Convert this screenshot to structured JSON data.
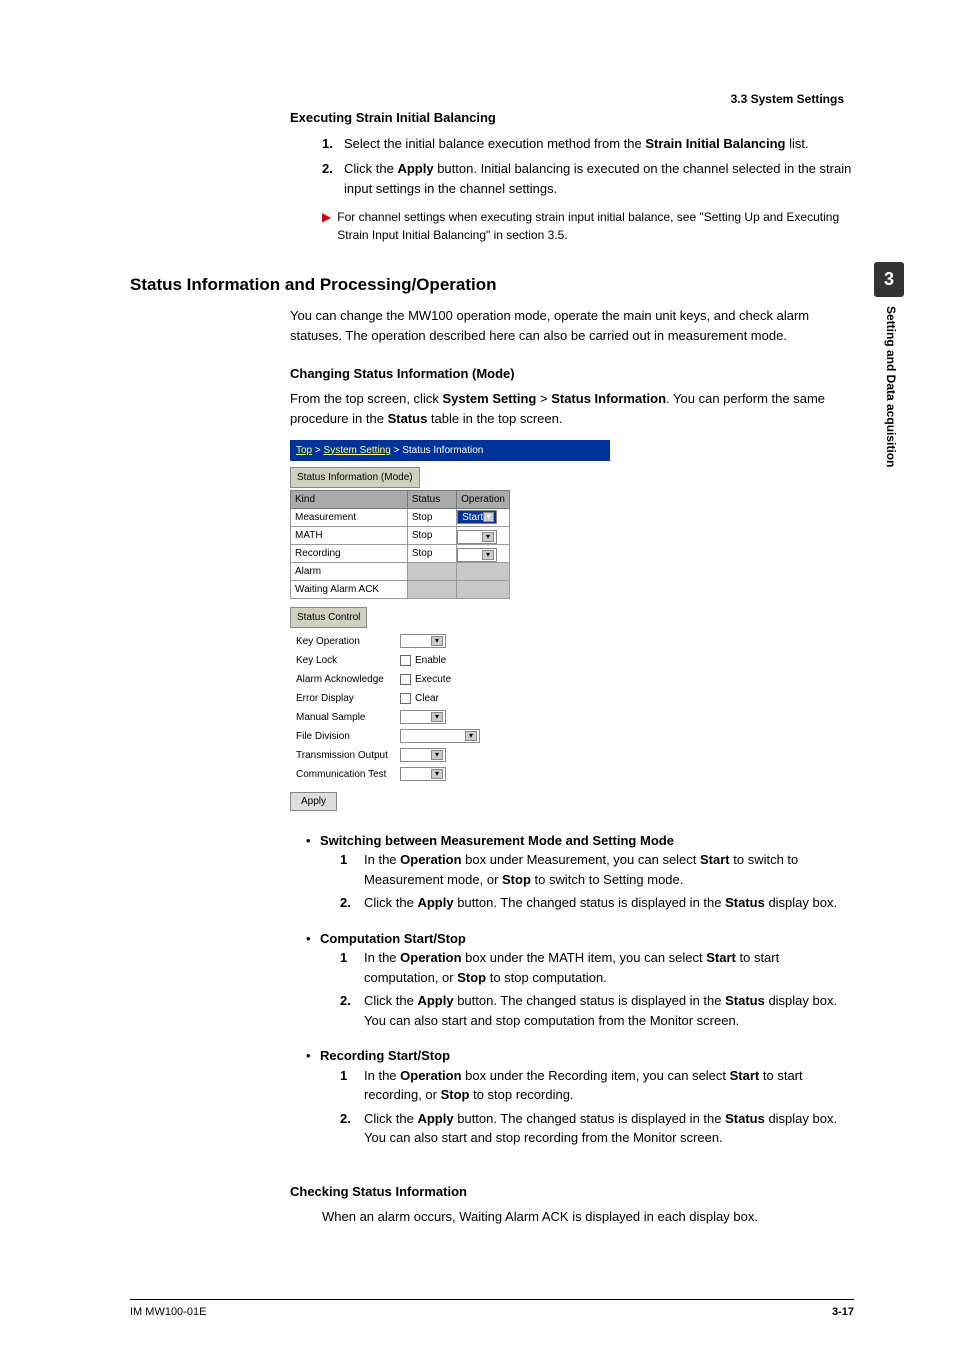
{
  "header": {
    "section": "3.3  System Settings"
  },
  "sidetab": {
    "num": "3",
    "label": "Setting and Data acquisition"
  },
  "s1": {
    "title": "Executing Strain Initial Balancing",
    "steps": [
      {
        "n": "1.",
        "pre": "Select the initial balance execution method from the ",
        "b1": "Strain Initial Balancing",
        "post": " list."
      },
      {
        "n": "2.",
        "pre": "Click the ",
        "b1": "Apply",
        "post": " button. Initial balancing is executed on the channel selected in the strain input settings in the channel settings."
      }
    ],
    "note": "For channel settings when executing strain input initial balance, see \"Setting Up and Executing Strain Input Initial Balancing\" in section 3.5."
  },
  "s2": {
    "title": "Status Information and Processing/Operation",
    "intro": "You can change the MW100 operation mode, operate the main unit keys, and check alarm statuses. The operation described here can also be carried out in measurement mode.",
    "sub1": {
      "title": "Changing Status Information (Mode)",
      "p_pre": "From the top screen, click ",
      "p_b1": "System Setting",
      "p_gt": " > ",
      "p_b2": "Status Information",
      "p_post": ". You can perform the same procedure in the ",
      "p_b3": "Status",
      "p_tail": " table in the top screen."
    }
  },
  "figure": {
    "breadcrumb": {
      "a1": "Top",
      "a2": "System Setting",
      "a3": "Status Information"
    },
    "tab1": "Status Information (Mode)",
    "grid": {
      "cols": [
        "Kind",
        "Status",
        "Operation"
      ],
      "rows": [
        {
          "kind": "Measurement",
          "status": "Stop",
          "op": "Start"
        },
        {
          "kind": "MATH",
          "status": "Stop",
          "op": ""
        },
        {
          "kind": "Recording",
          "status": "Stop",
          "op": ""
        },
        {
          "kind": "Alarm",
          "status": "",
          "op": "",
          "grey": true
        },
        {
          "kind": "Waiting Alarm ACK",
          "status": "",
          "op": "",
          "grey": true
        }
      ]
    },
    "tab2": "Status Control",
    "controls": [
      {
        "label": "Key Operation",
        "type": "select",
        "value": ""
      },
      {
        "label": "Key Lock",
        "type": "check",
        "value": "Enable"
      },
      {
        "label": "Alarm Acknowledge",
        "type": "check",
        "value": "Execute"
      },
      {
        "label": "Error Display",
        "type": "check",
        "value": "Clear"
      },
      {
        "label": "Manual Sample",
        "type": "select",
        "value": ""
      },
      {
        "label": "File Division",
        "type": "select",
        "value": "",
        "wide": true
      },
      {
        "label": "Transmission Output",
        "type": "select",
        "value": ""
      },
      {
        "label": "Communication Test",
        "type": "select",
        "value": ""
      }
    ],
    "apply": "Apply"
  },
  "subsections": [
    {
      "title": "Switching between Measurement Mode and Setting Mode",
      "steps": [
        {
          "n": "1",
          "html": "In the <b>Operation</b> box under Measurement, you can select <b>Start</b> to switch to Measurement mode, or <b>Stop</b> to switch to Setting mode."
        },
        {
          "n": "2.",
          "html": "Click the <b>Apply</b> button. The changed status is displayed in the <b>Status</b> display box."
        }
      ]
    },
    {
      "title": "Computation Start/Stop",
      "steps": [
        {
          "n": "1",
          "html": "In the <b>Operation</b> box under the MATH item, you can select <b>Start</b> to start computation, or <b>Stop</b> to stop computation."
        },
        {
          "n": "2.",
          "html": "Click the <b>Apply</b> button. The changed status is displayed in the <b>Status</b> display box. You can also start and stop computation from the Monitor screen."
        }
      ]
    },
    {
      "title": "Recording Start/Stop",
      "steps": [
        {
          "n": "1",
          "html": "In the <b>Operation</b> box under the Recording item, you can select <b>Start</b> to start recording, or <b>Stop</b> to stop recording."
        },
        {
          "n": "2.",
          "html": "Click the <b>Apply</b> button. The changed status is displayed in the <b>Status</b> display box. You can also start and stop recording from the Monitor screen."
        }
      ]
    }
  ],
  "s3": {
    "title": "Checking Status Information",
    "p": "When an alarm occurs, Waiting Alarm ACK is displayed in each display box."
  },
  "footer": {
    "left": "IM MW100-01E",
    "right": "3-17"
  }
}
